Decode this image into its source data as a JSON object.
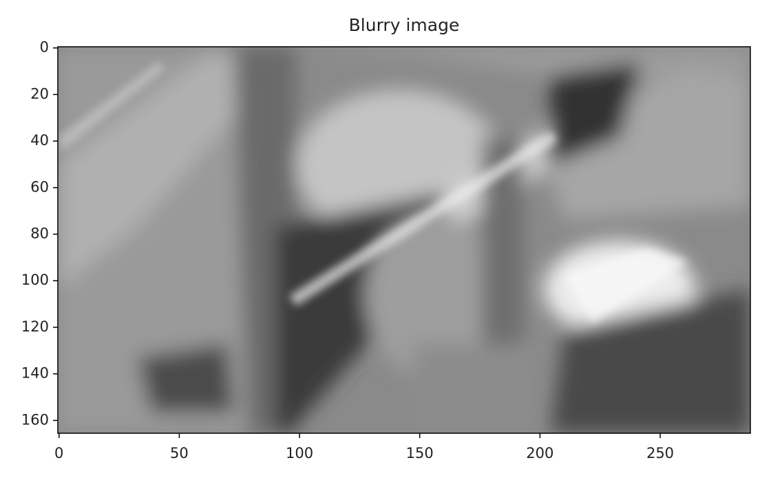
{
  "chart_data": {
    "type": "image",
    "title": "Blurry image",
    "xlim": [
      -0.5,
      287.5
    ],
    "xticks": [
      0,
      50,
      100,
      150,
      200,
      250
    ],
    "ylim": [
      165.5,
      -0.5
    ],
    "yticks": [
      0,
      20,
      40,
      60,
      80,
      100,
      120,
      140,
      160
    ],
    "colormap": "gray"
  }
}
